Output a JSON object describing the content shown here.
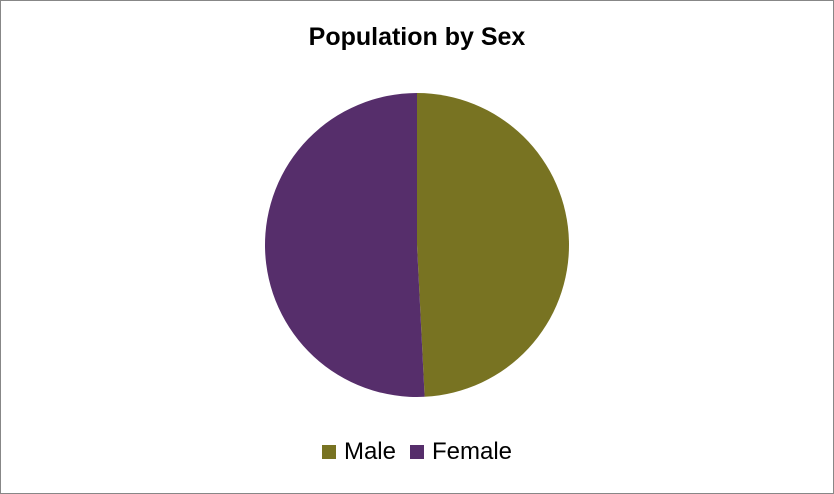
{
  "chart_data": {
    "type": "pie",
    "title": "Population by Sex",
    "categories": [
      "Male",
      "Female"
    ],
    "values": [
      49.2,
      50.8
    ],
    "colors": [
      "#787322",
      "#562e6b"
    ],
    "legend_position": "bottom"
  }
}
